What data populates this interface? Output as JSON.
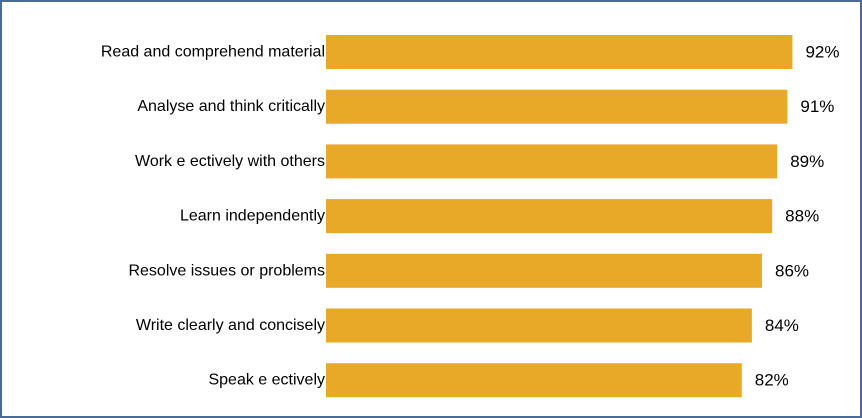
{
  "chart_data": {
    "type": "bar",
    "orientation": "horizontal",
    "title": "",
    "xlabel": "",
    "ylabel": "",
    "categories": [
      "Read and comprehend material",
      "Analyse and think critically",
      "Work e ectively with others",
      "Learn independently",
      "Resolve issues or problems",
      "Write clearly and concisely",
      "Speak e ectively"
    ],
    "values": [
      92,
      91,
      89,
      88,
      86,
      84,
      82
    ],
    "value_labels": [
      "92%",
      "91%",
      "89%",
      "88%",
      "86%",
      "84%",
      "82%"
    ],
    "xlim": [
      0,
      100
    ],
    "grid": false,
    "legend": "none",
    "bar_color": "#e8a828",
    "frame_color": "#4a6b95"
  }
}
